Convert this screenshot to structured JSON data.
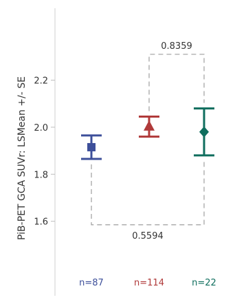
{
  "chart_data": {
    "type": "scatter",
    "subtype": "point-with-error-bars",
    "ylabel": "PiB-PET GCA SUVr: LSMean +/- SE",
    "ylim": [
      1.4,
      2.5
    ],
    "yticks": [
      1.6,
      1.8,
      2.0,
      2.2
    ],
    "ytick_labels": [
      "1.6",
      "1.8",
      "2.0",
      "2.2"
    ],
    "grid": false,
    "series": [
      {
        "n_label": "n=87",
        "mean": 1.915,
        "lower": 1.865,
        "upper": 1.965,
        "marker": "square",
        "color": "#3d4f9a"
      },
      {
        "n_label": "n=114",
        "mean": 2.003,
        "lower": 1.96,
        "upper": 2.045,
        "marker": "triangle",
        "color": "#b03a3a"
      },
      {
        "n_label": "n=22",
        "mean": 1.98,
        "lower": 1.88,
        "upper": 2.08,
        "marker": "diamond",
        "color": "#0f6e5e"
      }
    ],
    "comparisons": [
      {
        "from": 1,
        "to": 2,
        "label": "0.8359",
        "bracket_y": 2.31,
        "side": "top"
      },
      {
        "from": 0,
        "to": 2,
        "label": "0.5594",
        "bracket_y": 1.585,
        "side": "bottom"
      }
    ]
  }
}
